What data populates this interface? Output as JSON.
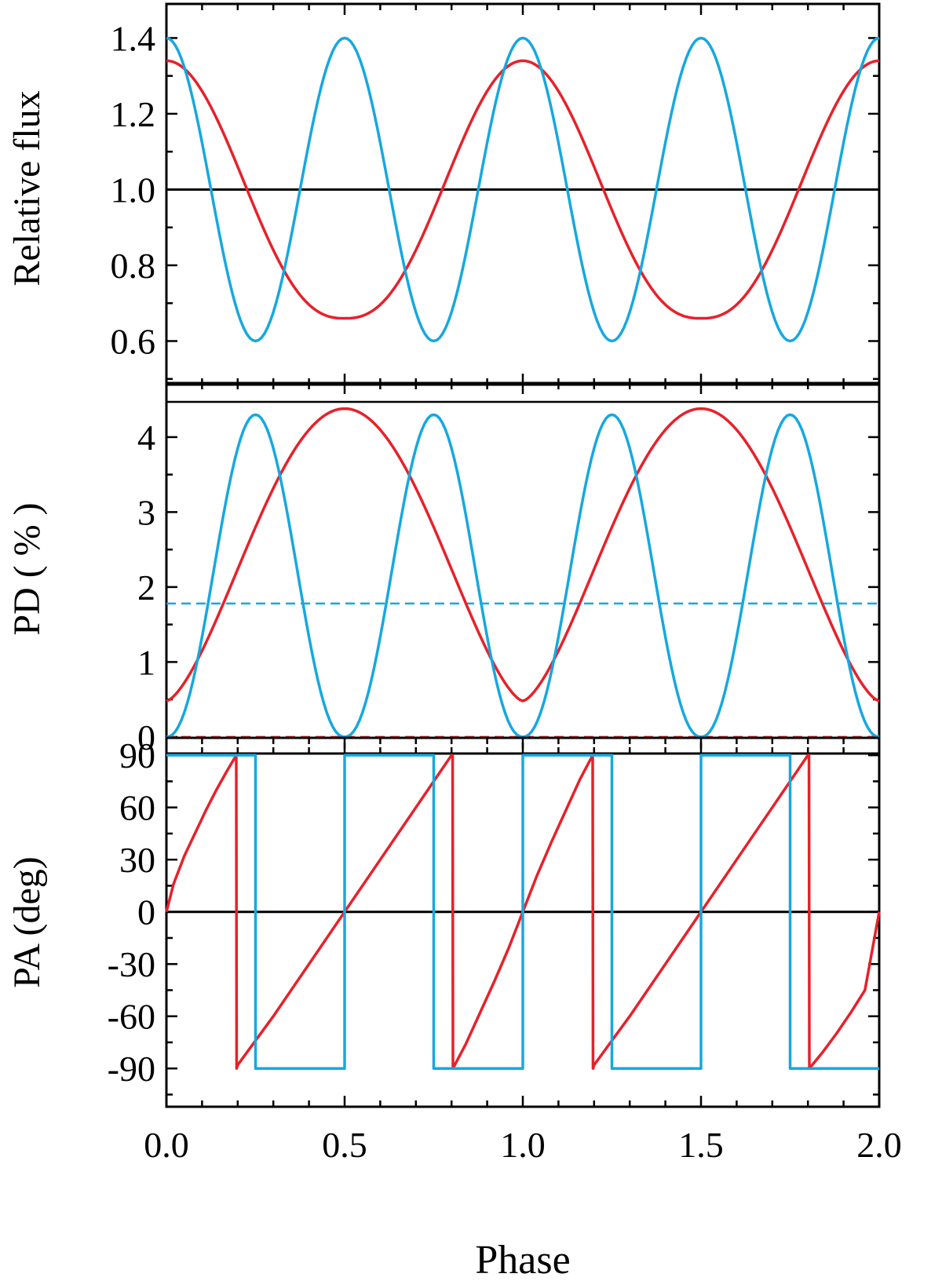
{
  "colors": {
    "red": "#e8202a",
    "blue": "#16a8e0",
    "axis": "#000000"
  },
  "chart_data": [
    {
      "type": "line",
      "panel": "flux",
      "ylabel": "Relative flux",
      "xlim": [
        0,
        2
      ],
      "ylim": [
        0.485,
        1.49
      ],
      "yticks": [
        0.6,
        0.8,
        1.0,
        1.2,
        1.4
      ],
      "ytick_labels": [
        "0.6",
        "0.8",
        "1.0",
        "1.2",
        "1.4"
      ],
      "series": [
        {
          "name": "flux-red",
          "color": "red",
          "samples": 241,
          "model": "flux_red"
        },
        {
          "name": "flux-blue",
          "color": "blue",
          "samples": 241,
          "model": "flux_blue"
        }
      ],
      "reference_lines": [
        {
          "y": 1.0,
          "color": "axis",
          "dash": false
        }
      ]
    },
    {
      "type": "line",
      "panel": "pd",
      "ylabel": "PD ( % )",
      "xlim": [
        0,
        2
      ],
      "ylim": [
        -0.2,
        4.47
      ],
      "yticks": [
        0,
        1,
        2,
        3,
        4
      ],
      "ytick_labels": [
        "0",
        "1",
        "2",
        "3",
        "4"
      ],
      "series": [
        {
          "name": "pd-red",
          "color": "red",
          "samples": 241,
          "model": "pd_red"
        },
        {
          "name": "pd-blue",
          "color": "blue",
          "samples": 241,
          "model": "pd_blue"
        }
      ],
      "reference_lines": [
        {
          "y": 1.78,
          "color": "blue",
          "dash": true
        },
        {
          "y": 0.0,
          "color": "red",
          "dash": true
        }
      ]
    },
    {
      "type": "line",
      "panel": "pa",
      "ylabel": "PA (deg)",
      "xlabel": "Phase",
      "xlim": [
        0,
        2
      ],
      "ylim": [
        -112,
        100
      ],
      "yticks": [
        -90,
        -60,
        -30,
        0,
        30,
        60,
        90
      ],
      "ytick_labels": [
        "-90",
        "-60",
        "-30",
        "0",
        "30",
        "60",
        "90"
      ],
      "xticks": [
        0,
        0.5,
        1.0,
        1.5,
        2.0
      ],
      "xtick_labels": [
        "0.0",
        "0.5",
        "1.0",
        "1.5",
        "2.0"
      ],
      "series": [
        {
          "name": "pa-red",
          "color": "red",
          "x": [
            0,
            0.02,
            0.05,
            0.08,
            0.11,
            0.14,
            0.17,
            0.196,
            0.197,
            0.2,
            0.3,
            0.4,
            0.5,
            0.6,
            0.7,
            0.8,
            0.803,
            0.804,
            0.84,
            0.88,
            0.92,
            0.96,
            1.0,
            1.04,
            1.08,
            1.12,
            1.16,
            1.196,
            1.197,
            1.2,
            1.3,
            1.4,
            1.5,
            1.6,
            1.7,
            1.8,
            1.803,
            1.804,
            1.84,
            1.88,
            1.92,
            1.96,
            2.0
          ],
          "y": [
            0,
            16,
            32,
            45,
            58,
            70,
            81,
            90,
            -90,
            -88,
            -60,
            -30,
            0,
            30,
            60,
            90,
            90,
            -90,
            -76,
            -58,
            -40,
            -21,
            0,
            21,
            40,
            58,
            76,
            90,
            -90,
            -88,
            -60,
            -30,
            0,
            30,
            60,
            90,
            90,
            -90,
            -81,
            -70,
            -58,
            -45,
            0
          ]
        },
        {
          "name": "pa-blue",
          "color": "blue",
          "x": [
            0,
            0.25,
            0.25,
            0.5,
            0.5,
            0.75,
            0.75,
            1.0,
            1.0,
            1.25,
            1.25,
            1.5,
            1.5,
            1.75,
            1.75,
            2.0
          ],
          "y": [
            90,
            90,
            -90,
            -90,
            90,
            90,
            -90,
            -90,
            90,
            90,
            -90,
            -90,
            90,
            90,
            -90,
            -90
          ]
        }
      ],
      "reference_lines": [
        {
          "y": 0,
          "color": "axis",
          "dash": false
        }
      ]
    }
  ]
}
